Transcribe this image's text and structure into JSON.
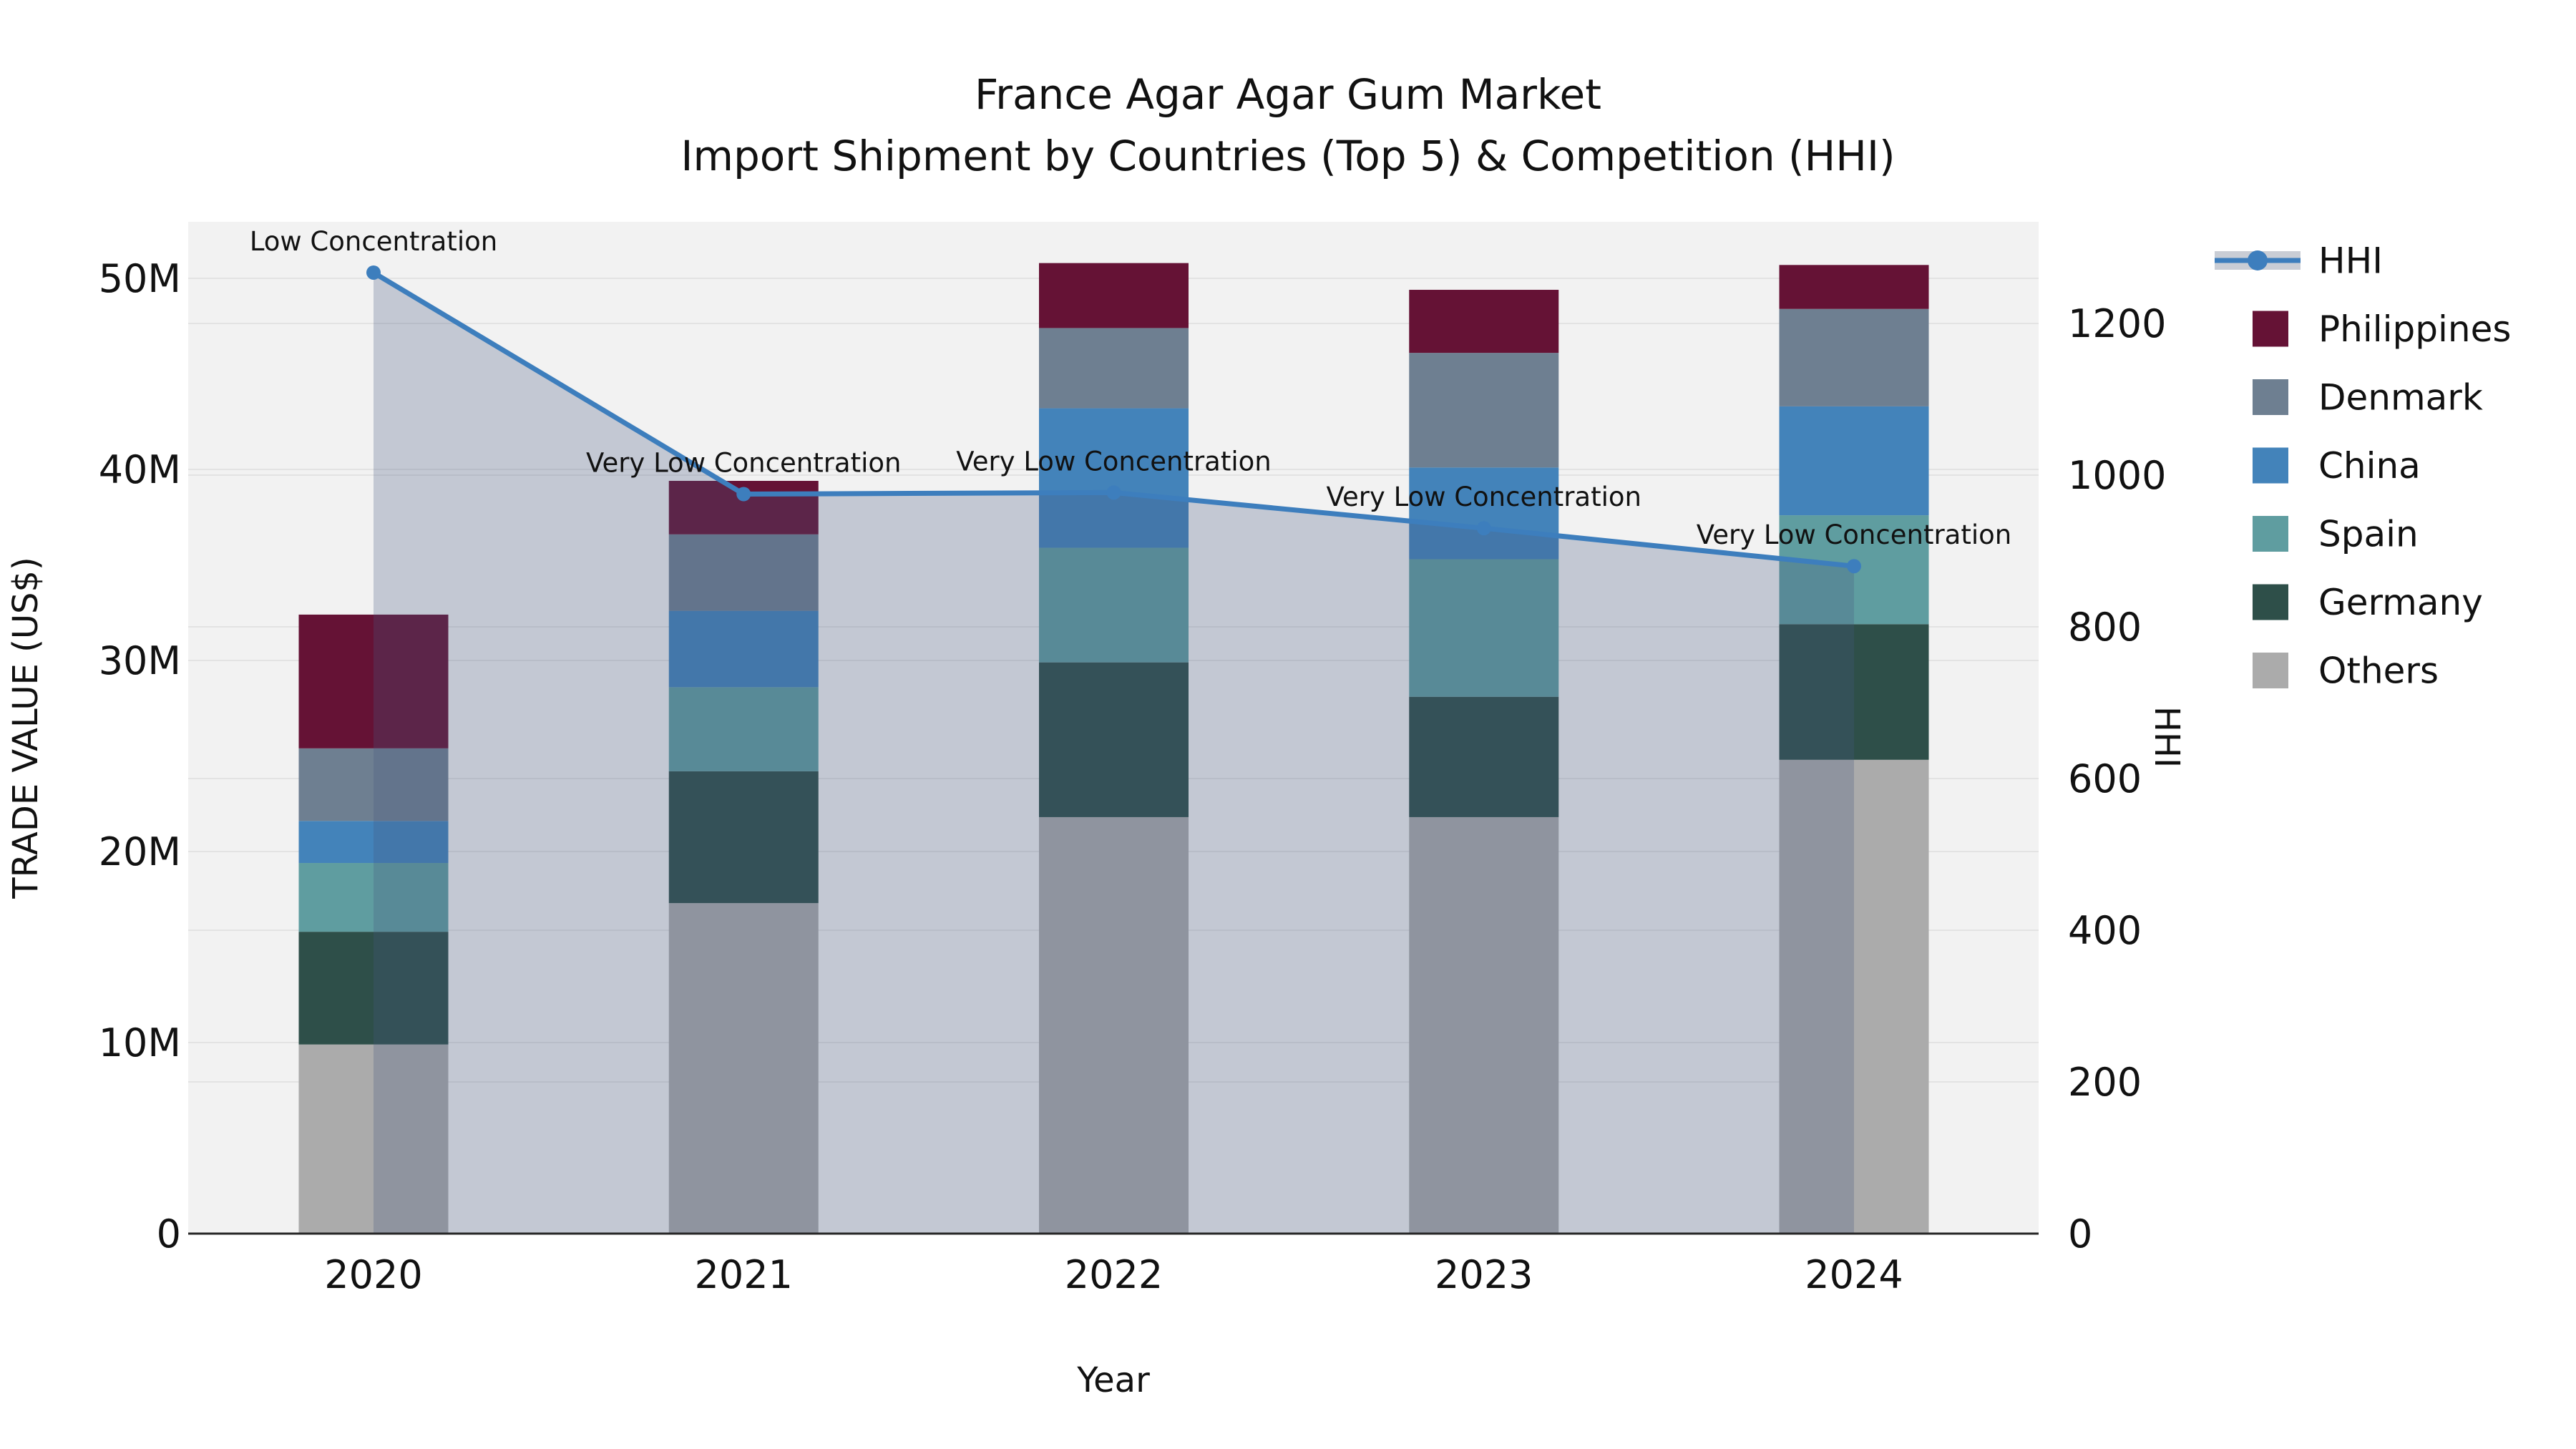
{
  "title": {
    "line1": "France Agar Agar Gum Market",
    "line2": "Import Shipment by Countries (Top 5) & Competition (HHI)"
  },
  "axes": {
    "x": {
      "label": "Year",
      "ticks": [
        "2020",
        "2021",
        "2022",
        "2023",
        "2024"
      ]
    },
    "y_left": {
      "label": "TRADE VALUE (US$)",
      "ticks": [
        "0",
        "10M",
        "20M",
        "30M",
        "40M",
        "50M"
      ],
      "tick_values": [
        0,
        10,
        20,
        30,
        40,
        50
      ]
    },
    "y_right": {
      "label": "HHI",
      "ticks": [
        "0",
        "200",
        "400",
        "600",
        "800",
        "1000",
        "1200"
      ],
      "tick_values": [
        0,
        200,
        400,
        600,
        800,
        1000,
        1200
      ]
    }
  },
  "legend": {
    "items": [
      {
        "label": "HHI",
        "type": "line",
        "color": "#3d7ebd"
      },
      {
        "label": "Philippines",
        "type": "swatch",
        "color": "#651235"
      },
      {
        "label": "Denmark",
        "type": "swatch",
        "color": "#6e7f91"
      },
      {
        "label": "China",
        "type": "swatch",
        "color": "#4383ba"
      },
      {
        "label": "Spain",
        "type": "swatch",
        "color": "#5f9da0"
      },
      {
        "label": "Germany",
        "type": "swatch",
        "color": "#2e4f49"
      },
      {
        "label": "Others",
        "type": "swatch",
        "color": "#ababab"
      }
    ]
  },
  "chart_data": {
    "type": "bar",
    "subtype": "stacked-bars-with-line-overlay",
    "categories": [
      "2020",
      "2021",
      "2022",
      "2023",
      "2024"
    ],
    "stack_order_bottom_to_top": [
      "Others",
      "Germany",
      "Spain",
      "China",
      "Denmark",
      "Philippines"
    ],
    "series": [
      {
        "name": "Others",
        "values": [
          9.9,
          17.3,
          21.8,
          21.8,
          24.8
        ]
      },
      {
        "name": "Germany",
        "values": [
          5.9,
          6.9,
          8.1,
          6.3,
          7.1
        ]
      },
      {
        "name": "Spain",
        "values": [
          3.6,
          4.4,
          6.0,
          7.2,
          5.7
        ]
      },
      {
        "name": "China",
        "values": [
          2.2,
          4.0,
          7.3,
          4.8,
          5.7
        ]
      },
      {
        "name": "Denmark",
        "values": [
          3.8,
          4.0,
          4.2,
          6.0,
          5.1
        ]
      },
      {
        "name": "Philippines",
        "values": [
          7.0,
          2.8,
          3.4,
          3.3,
          2.3
        ]
      }
    ],
    "bar_totals_millions": [
      32.4,
      39.4,
      50.8,
      49.4,
      50.7
    ],
    "line_series": {
      "name": "HHI",
      "values": [
        1267,
        975,
        977,
        930,
        880
      ],
      "axis": "right",
      "has_area_fill": true
    },
    "annotations": [
      {
        "category": "2020",
        "text": "Low Concentration"
      },
      {
        "category": "2021",
        "text": "Very Low Concentration"
      },
      {
        "category": "2022",
        "text": "Very Low Concentration"
      },
      {
        "category": "2023",
        "text": "Very Low Concentration"
      },
      {
        "category": "2024",
        "text": "Very Low Concentration"
      }
    ],
    "title": "France Agar Agar Gum Market Import Shipment by Countries (Top 5) & Competition (HHI)",
    "xlabel": "Year",
    "ylabel_left": "TRADE VALUE (US$)",
    "ylabel_right": "HHI",
    "ylim_left_millions": [
      0,
      53
    ],
    "ylim_right_hhi": [
      0,
      1334
    ],
    "grid": true,
    "legend_position": "right"
  },
  "colors": {
    "philippines": "#651235",
    "denmark": "#6e7f91",
    "china": "#4383ba",
    "spain": "#5f9da0",
    "germany": "#2e4f49",
    "others": "#ababab",
    "hhi_line": "#3d7ebd",
    "area_overlay": "rgba(70,90,130,0.27)",
    "plot_background": "#f2f2f2",
    "grid_line": "#e3e3e3",
    "axis_line": "#262626",
    "text": "#111111"
  }
}
